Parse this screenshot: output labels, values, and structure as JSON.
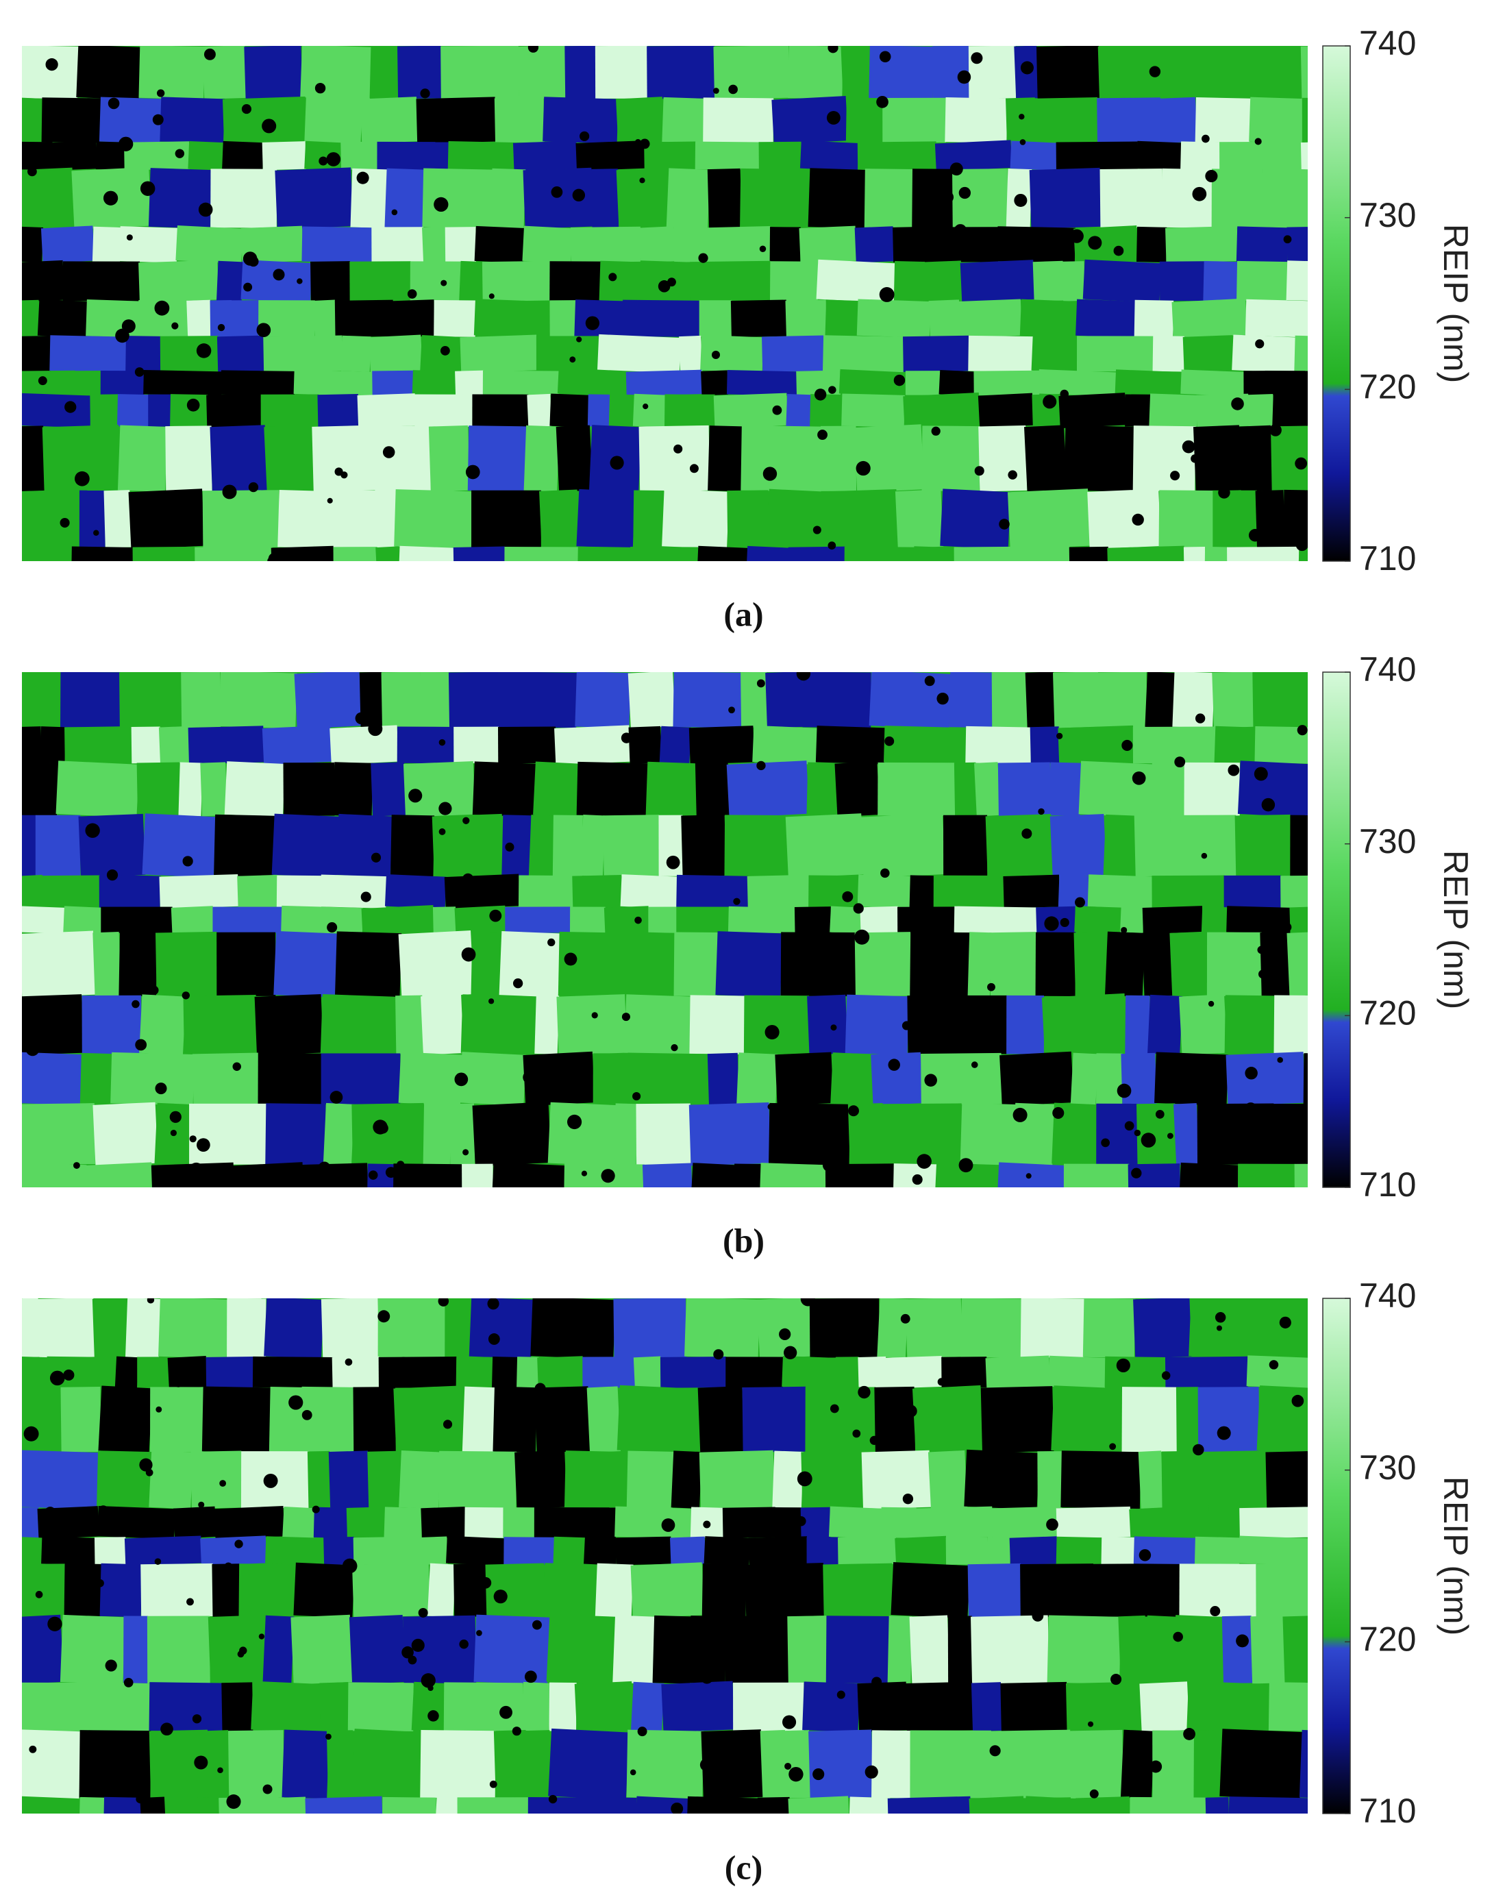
{
  "panels": [
    {
      "caption": "(a)",
      "colorbar": {
        "label": "REIP (nm)",
        "lim": [
          710,
          740
        ],
        "ticks": [
          710,
          720,
          730,
          740
        ],
        "colormap": [
          "#000000",
          "#10189a",
          "#3048d0",
          "#22b022",
          "#5ad860",
          "#d6f9da"
        ]
      }
    },
    {
      "caption": "(b)",
      "colorbar": {
        "label": "REIP (nm)",
        "lim": [
          710,
          740
        ],
        "ticks": [
          710,
          720,
          730,
          740
        ],
        "colormap": [
          "#000000",
          "#10189a",
          "#3048d0",
          "#22b022",
          "#5ad860",
          "#d6f9da"
        ]
      }
    },
    {
      "caption": "(c)",
      "colorbar": {
        "label": "REIP (nm)",
        "lim": [
          710,
          740
        ],
        "ticks": [
          710,
          720,
          730,
          740
        ],
        "colormap": [
          "#000000",
          "#10189a",
          "#3048d0",
          "#22b022",
          "#5ad860",
          "#d6f9da"
        ]
      }
    }
  ]
}
